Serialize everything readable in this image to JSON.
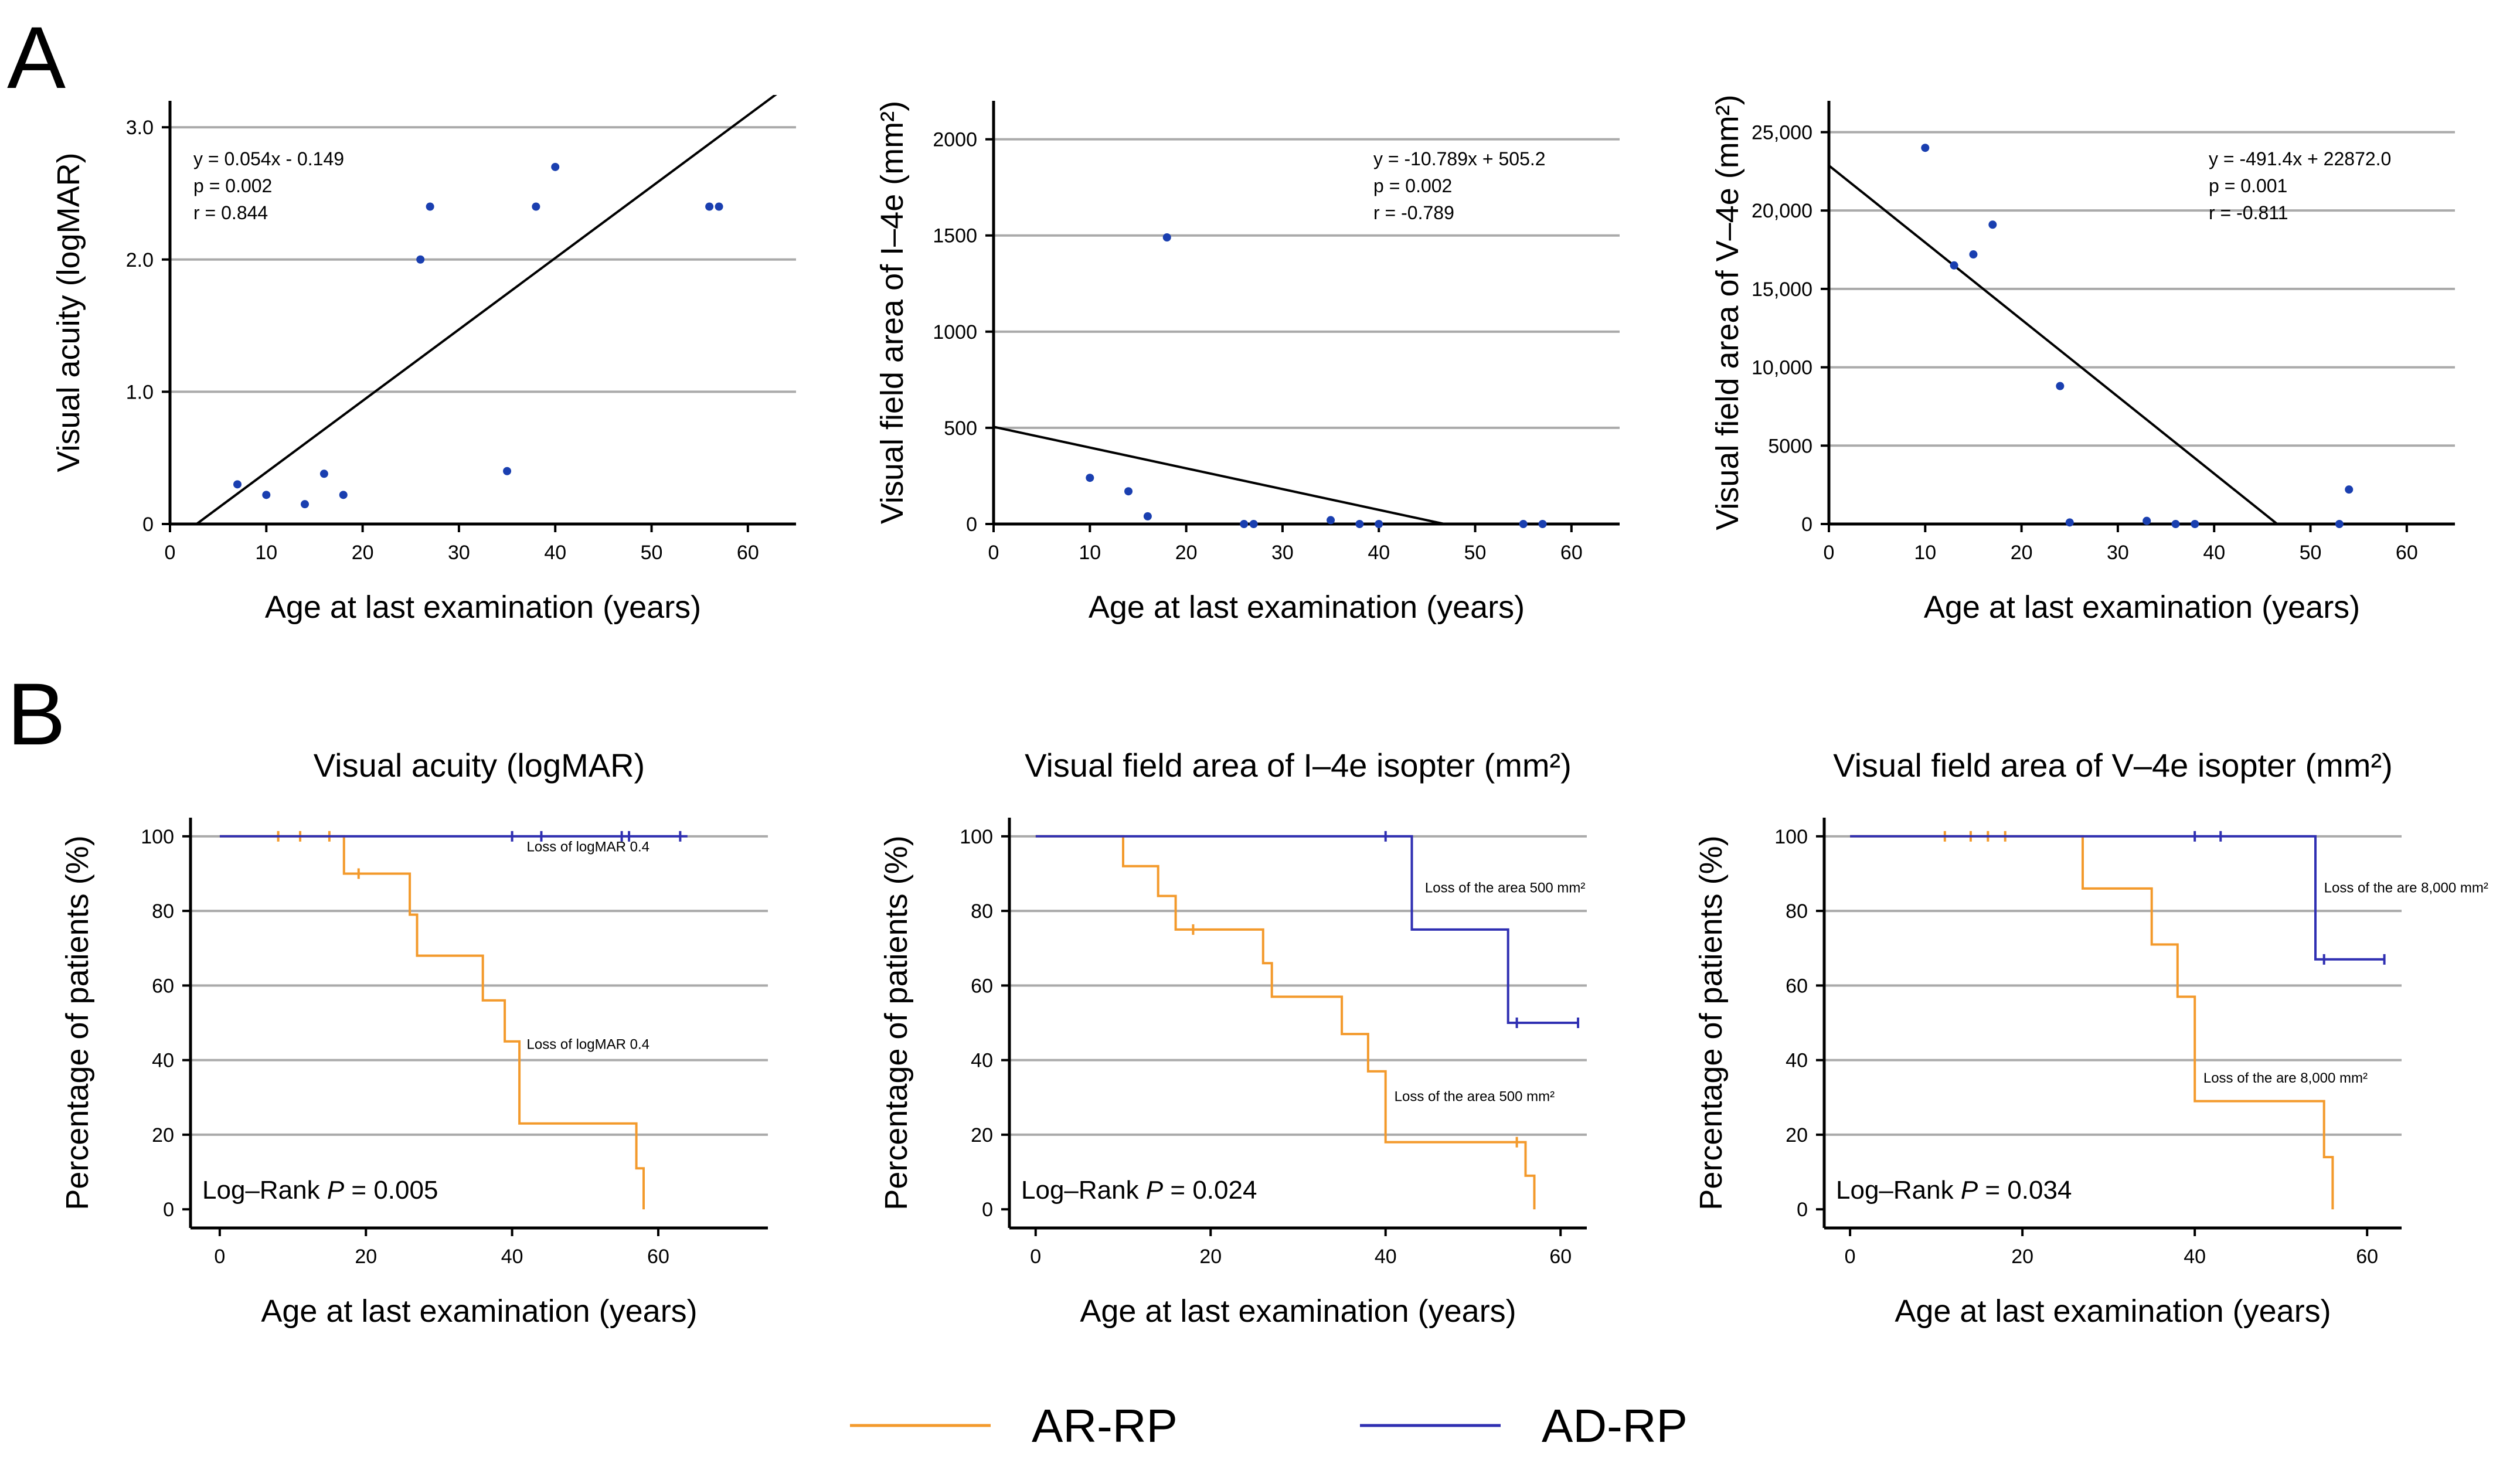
{
  "panels": {
    "a": "A",
    "b": "B"
  },
  "colors": {
    "ar": "#f39a2c",
    "ad": "#2f2fb2",
    "dot": "#1a3fb0",
    "grid": "#aaaaaa"
  },
  "chart_data": [
    {
      "type": "scatter",
      "panel": "A",
      "title": "",
      "xlabel": "Age at last examination (years)",
      "ylabel": "Visual acuity (logMAR)",
      "xlim": [
        0,
        65
      ],
      "ylim": [
        0,
        3.2
      ],
      "xticks": [
        "0",
        "10",
        "20",
        "30",
        "40",
        "50",
        "60"
      ],
      "yticks": [
        "0",
        "1.0",
        "2.0",
        "3.0"
      ],
      "xtick_values": [
        0,
        10,
        20,
        30,
        40,
        50,
        60
      ],
      "ytick_values": [
        0,
        1,
        2,
        3
      ],
      "grid_values": [
        1,
        2,
        3
      ],
      "grid": true,
      "points": [
        [
          7,
          0.3
        ],
        [
          10,
          0.22
        ],
        [
          14,
          0.15
        ],
        [
          16,
          0.38
        ],
        [
          18,
          0.22
        ],
        [
          26,
          2.0
        ],
        [
          27,
          2.4
        ],
        [
          35,
          0.4
        ],
        [
          38,
          2.4
        ],
        [
          40,
          2.7
        ],
        [
          56,
          2.4
        ],
        [
          57,
          2.4
        ]
      ],
      "fit": {
        "slope": 0.054,
        "intercept": -0.149
      },
      "stats": [
        "y = 0.054x - 0.149",
        "p = 0.002",
        "r = 0.844"
      ]
    },
    {
      "type": "scatter",
      "panel": "A",
      "title": "",
      "xlabel": "Age at last examination (years)",
      "ylabel": "Visual field area of I–4e (mm²)",
      "xlim": [
        0,
        65
      ],
      "ylim": [
        0,
        2200
      ],
      "xticks": [
        "0",
        "10",
        "20",
        "30",
        "40",
        "50",
        "60"
      ],
      "yticks": [
        "0",
        "500",
        "1000",
        "1500",
        "2000"
      ],
      "xtick_values": [
        0,
        10,
        20,
        30,
        40,
        50,
        60
      ],
      "ytick_values": [
        0,
        500,
        1000,
        1500,
        2000
      ],
      "grid_values": [
        500,
        1000,
        1500,
        2000
      ],
      "grid": true,
      "points": [
        [
          10,
          240
        ],
        [
          14,
          170
        ],
        [
          16,
          40
        ],
        [
          18,
          1490
        ],
        [
          26,
          0
        ],
        [
          27,
          0
        ],
        [
          35,
          20
        ],
        [
          38,
          0
        ],
        [
          40,
          0
        ],
        [
          55,
          0
        ],
        [
          57,
          0
        ]
      ],
      "fit": {
        "slope": -10.789,
        "intercept": 505.2
      },
      "stats": [
        "y = -10.789x + 505.2",
        "p = 0.002",
        "r = -0.789"
      ]
    },
    {
      "type": "scatter",
      "panel": "A",
      "title": "",
      "xlabel": "Age at last examination (years)",
      "ylabel": "Visual field area of V–4e (mm²)",
      "xlim": [
        0,
        65
      ],
      "ylim": [
        0,
        27000
      ],
      "xticks": [
        "0",
        "10",
        "20",
        "30",
        "40",
        "50",
        "60"
      ],
      "yticks": [
        "0",
        "5000",
        "10,000",
        "15,000",
        "20,000",
        "25,000"
      ],
      "xtick_values": [
        0,
        10,
        20,
        30,
        40,
        50,
        60
      ],
      "ytick_values": [
        0,
        5000,
        10000,
        15000,
        20000,
        25000
      ],
      "grid_values": [
        5000,
        10000,
        15000,
        20000,
        25000
      ],
      "grid": true,
      "points": [
        [
          10,
          24000
        ],
        [
          13,
          16500
        ],
        [
          15,
          17200
        ],
        [
          17,
          19100
        ],
        [
          24,
          8800
        ],
        [
          25,
          100
        ],
        [
          33,
          200
        ],
        [
          36,
          0
        ],
        [
          38,
          0
        ],
        [
          53,
          0
        ],
        [
          54,
          2200
        ]
      ],
      "fit": {
        "slope": -491.4,
        "intercept": 22872.0
      },
      "stats": [
        "y = -491.4x + 22872.0",
        "p = 0.001",
        "r = -0.811"
      ]
    },
    {
      "type": "line",
      "panel": "B",
      "title": "Visual acuity (logMAR)",
      "xlabel": "Age at last examination (years)",
      "ylabel": "Percentage of patients (%)",
      "xlim": [
        -4,
        75
      ],
      "ylim": [
        -5,
        105
      ],
      "xticks": [
        "0",
        "20",
        "40",
        "60"
      ],
      "yticks": [
        "0",
        "20",
        "40",
        "60",
        "80",
        "100"
      ],
      "xtick_values": [
        0,
        20,
        40,
        60
      ],
      "ytick_values": [
        0,
        20,
        40,
        60,
        80,
        100
      ],
      "grid_values": [
        20,
        40,
        60,
        80,
        100
      ],
      "grid": true,
      "series": [
        {
          "name": "AR-RP",
          "steps": [
            [
              0,
              100
            ],
            [
              17,
              100
            ],
            [
              17,
              90
            ],
            [
              26,
              90
            ],
            [
              26,
              79
            ],
            [
              27,
              79
            ],
            [
              27,
              68
            ],
            [
              36,
              68
            ],
            [
              36,
              56
            ],
            [
              39,
              56
            ],
            [
              39,
              45
            ],
            [
              41,
              45
            ],
            [
              41,
              23
            ],
            [
              57,
              23
            ],
            [
              57,
              11
            ],
            [
              58,
              11
            ],
            [
              58,
              0
            ]
          ],
          "censored": [
            [
              8,
              100
            ],
            [
              11,
              100
            ],
            [
              15,
              100
            ],
            [
              19,
              90
            ]
          ]
        },
        {
          "name": "AD-RP",
          "steps": [
            [
              0,
              100
            ],
            [
              64,
              100
            ]
          ],
          "censored": [
            [
              40,
              100
            ],
            [
              44,
              100
            ],
            [
              55,
              100
            ],
            [
              56,
              100
            ],
            [
              63,
              100
            ]
          ]
        }
      ],
      "annotations": [
        {
          "text": "Loss of logMAR 0.4",
          "x": 42,
          "y": 96
        },
        {
          "text": "Loss of logMAR 0.4",
          "x": 42,
          "y": 43
        }
      ],
      "logrank": {
        "prefix": "Log–Rank ",
        "p_symbol": "P",
        "rest": " = 0.005"
      }
    },
    {
      "type": "line",
      "panel": "B",
      "title": "Visual field area of I–4e isopter (mm²)",
      "xlabel": "Age at last examination (years)",
      "ylabel": "Percentage of patients (%)",
      "xlim": [
        -3,
        63
      ],
      "ylim": [
        -5,
        105
      ],
      "xticks": [
        "0",
        "20",
        "40",
        "60"
      ],
      "yticks": [
        "0",
        "20",
        "40",
        "60",
        "80",
        "100"
      ],
      "xtick_values": [
        0,
        20,
        40,
        60
      ],
      "ytick_values": [
        0,
        20,
        40,
        60,
        80,
        100
      ],
      "grid_values": [
        20,
        40,
        60,
        80,
        100
      ],
      "grid": true,
      "series": [
        {
          "name": "AR-RP",
          "steps": [
            [
              0,
              100
            ],
            [
              10,
              100
            ],
            [
              10,
              92
            ],
            [
              14,
              92
            ],
            [
              14,
              84
            ],
            [
              16,
              84
            ],
            [
              16,
              75
            ],
            [
              26,
              75
            ],
            [
              26,
              66
            ],
            [
              27,
              66
            ],
            [
              27,
              57
            ],
            [
              35,
              57
            ],
            [
              35,
              47
            ],
            [
              38,
              47
            ],
            [
              38,
              37
            ],
            [
              40,
              37
            ],
            [
              40,
              18
            ],
            [
              56,
              18
            ],
            [
              56,
              9
            ],
            [
              57,
              9
            ],
            [
              57,
              0
            ]
          ],
          "censored": [
            [
              18,
              75
            ],
            [
              55,
              18
            ]
          ]
        },
        {
          "name": "AD-RP",
          "steps": [
            [
              0,
              100
            ],
            [
              43,
              100
            ],
            [
              43,
              75
            ],
            [
              54,
              75
            ],
            [
              54,
              50
            ],
            [
              62,
              50
            ]
          ],
          "censored": [
            [
              40,
              100
            ],
            [
              55,
              50
            ],
            [
              62,
              50
            ]
          ]
        }
      ],
      "annotations": [
        {
          "text": "Loss of the area 500 mm²",
          "x": 44.5,
          "y": 85
        },
        {
          "text": "Loss of the area 500 mm²",
          "x": 41,
          "y": 29
        }
      ],
      "logrank": {
        "prefix": "Log–Rank ",
        "p_symbol": "P",
        "rest": " = 0.024"
      }
    },
    {
      "type": "line",
      "panel": "B",
      "title": "Visual field area of V–4e isopter (mm²)",
      "xlabel": "Age at last examination (years)",
      "ylabel": "Percentage of patients (%)",
      "xlim": [
        -3,
        64
      ],
      "ylim": [
        -5,
        105
      ],
      "xticks": [
        "0",
        "20",
        "40",
        "60"
      ],
      "yticks": [
        "0",
        "20",
        "40",
        "60",
        "80",
        "100"
      ],
      "xtick_values": [
        0,
        20,
        40,
        60
      ],
      "ytick_values": [
        0,
        20,
        40,
        60,
        80,
        100
      ],
      "grid_values": [
        20,
        40,
        60,
        80,
        100
      ],
      "grid": true,
      "series": [
        {
          "name": "AR-RP",
          "steps": [
            [
              0,
              100
            ],
            [
              27,
              100
            ],
            [
              27,
              86
            ],
            [
              35,
              86
            ],
            [
              35,
              71
            ],
            [
              38,
              71
            ],
            [
              38,
              57
            ],
            [
              40,
              57
            ],
            [
              40,
              29
            ],
            [
              55,
              29
            ],
            [
              55,
              14
            ],
            [
              56,
              14
            ],
            [
              56,
              0
            ]
          ],
          "censored": [
            [
              11,
              100
            ],
            [
              14,
              100
            ],
            [
              16,
              100
            ],
            [
              18,
              100
            ]
          ]
        },
        {
          "name": "AD-RP",
          "steps": [
            [
              0,
              100
            ],
            [
              54,
              100
            ],
            [
              54,
              67
            ],
            [
              62,
              67
            ]
          ],
          "censored": [
            [
              40,
              100
            ],
            [
              43,
              100
            ],
            [
              55,
              67
            ],
            [
              62,
              67
            ]
          ]
        }
      ],
      "annotations": [
        {
          "text": "Loss of the are 8,000 mm²",
          "x": 55,
          "y": 85
        },
        {
          "text": "Loss of the are 8,000 mm²",
          "x": 41,
          "y": 34
        }
      ],
      "logrank": {
        "prefix": "Log–Rank ",
        "p_symbol": "P",
        "rest": " = 0.034"
      }
    }
  ],
  "legend": [
    {
      "name": "AR-RP",
      "color": "#f39a2c"
    },
    {
      "name": "AD-RP",
      "color": "#2f2fb2"
    }
  ]
}
